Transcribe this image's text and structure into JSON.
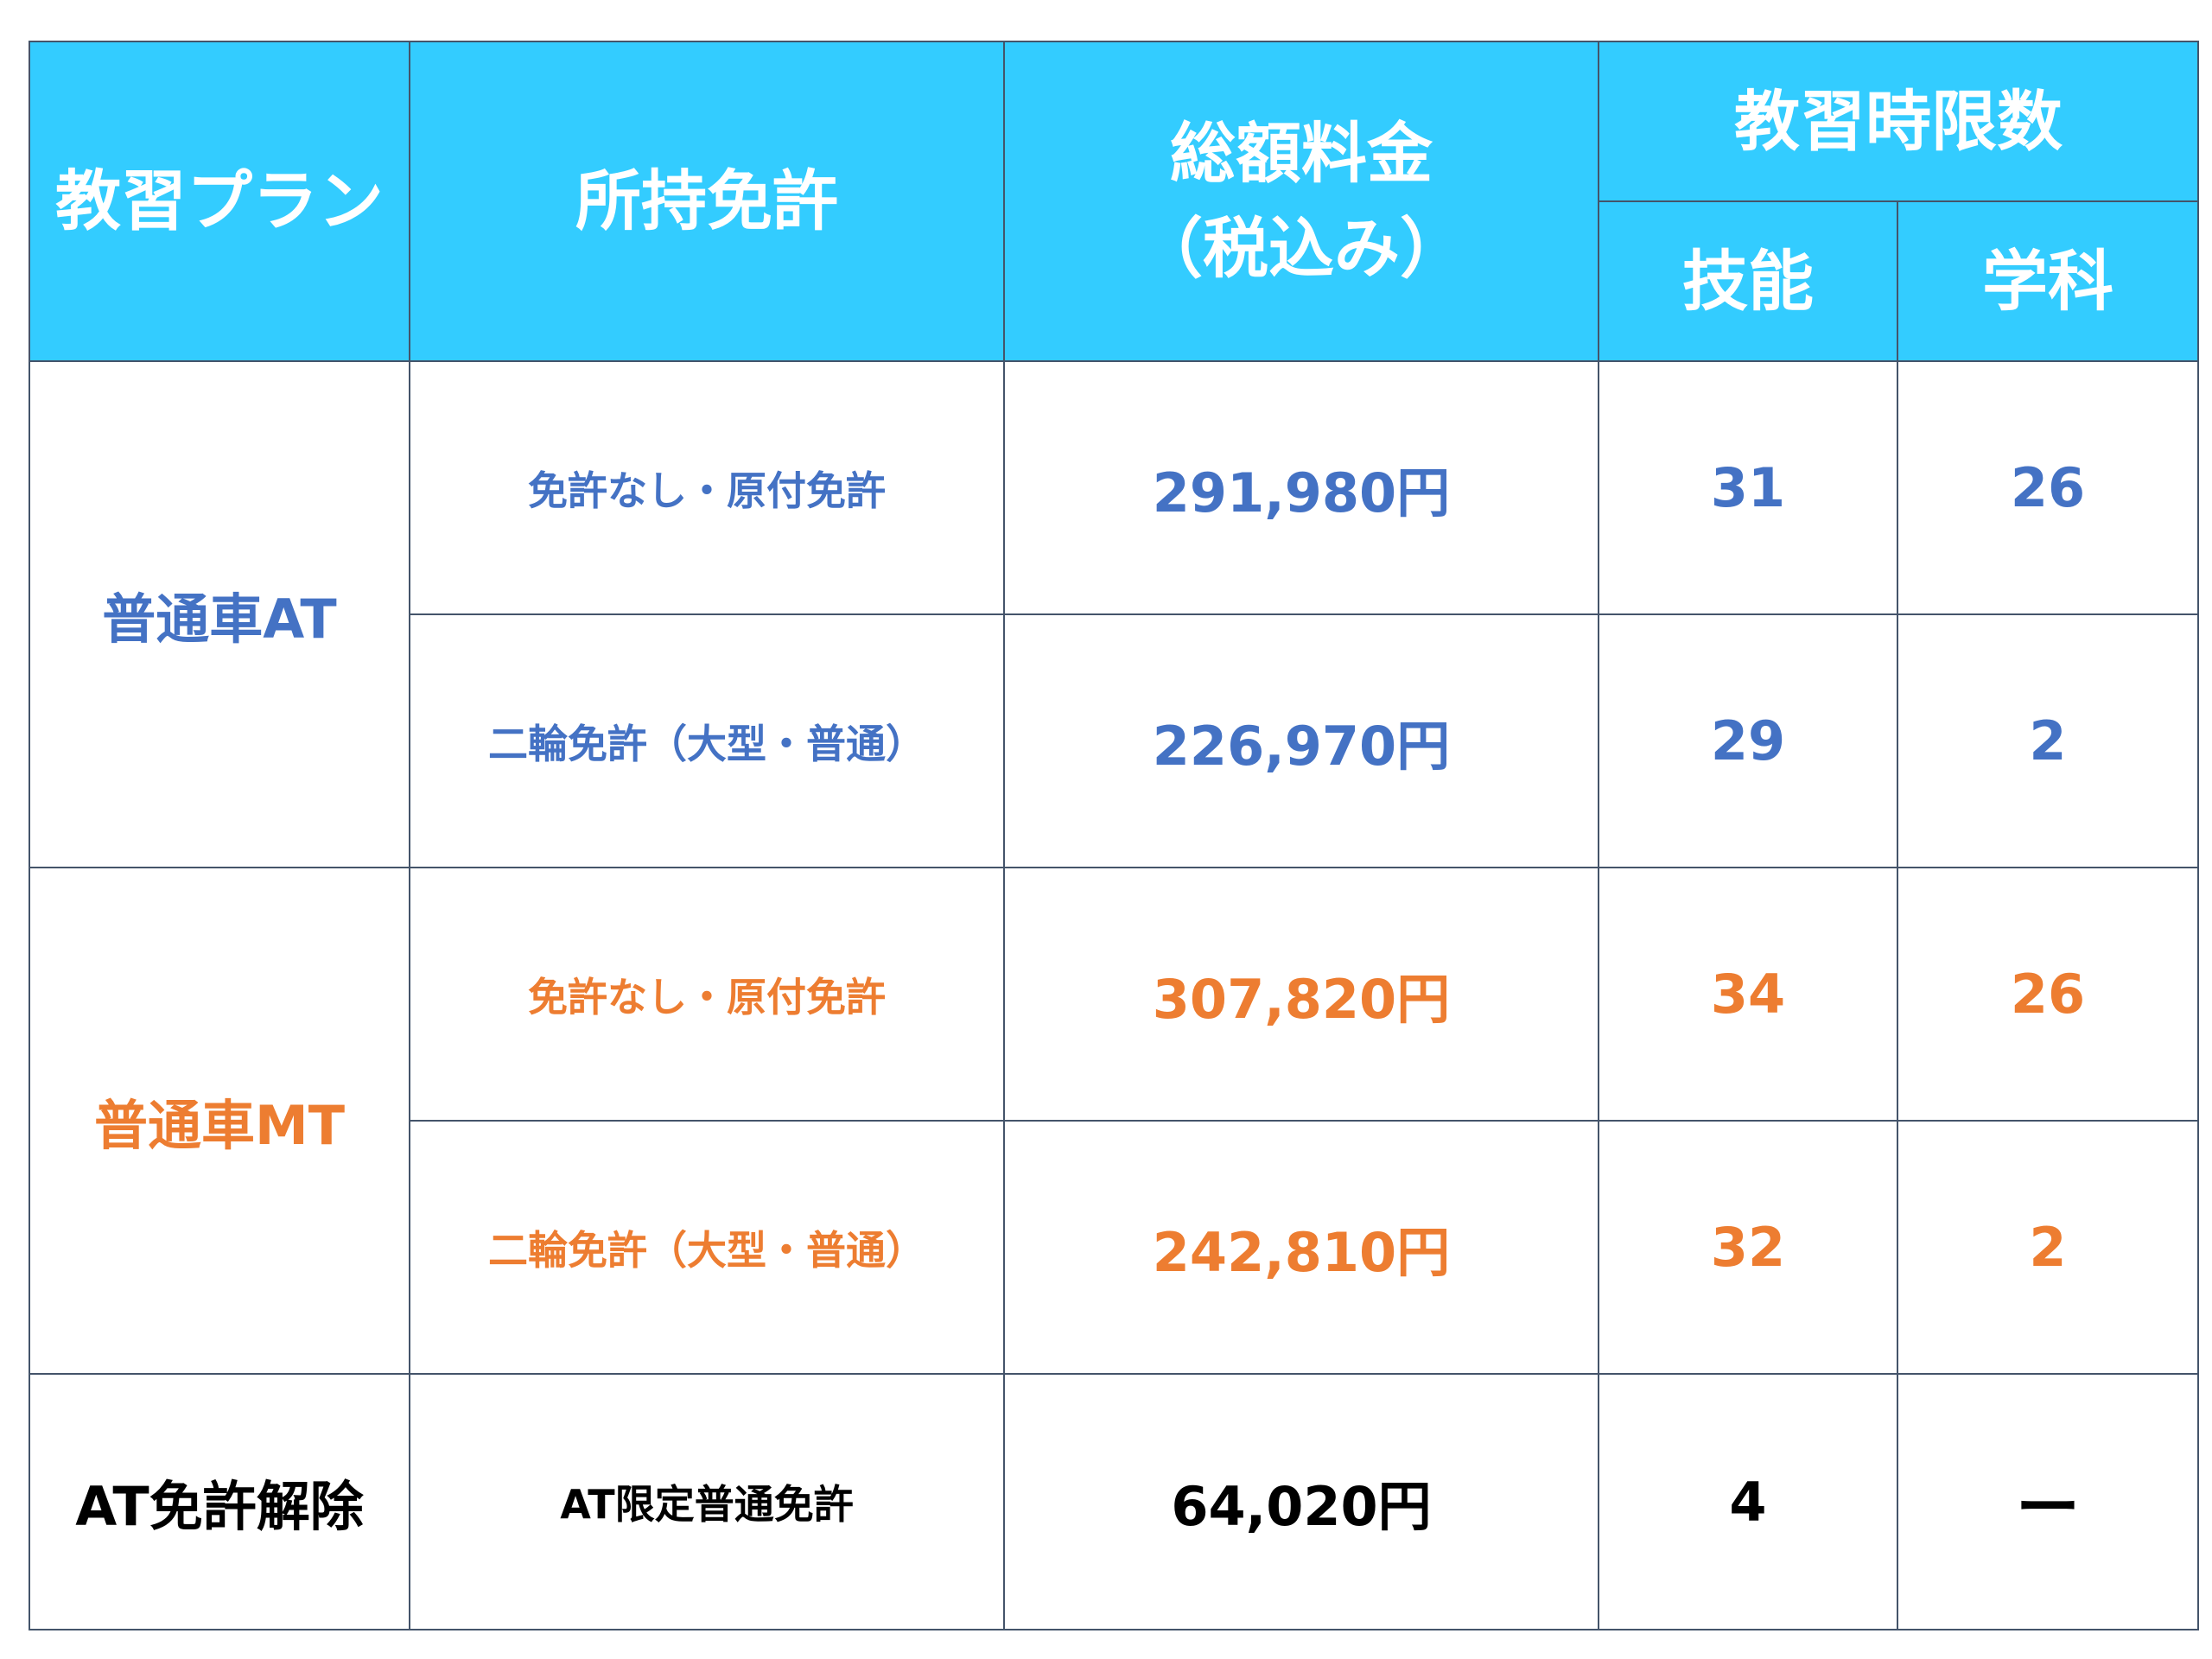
{
  "colors": {
    "header_bg": "#33ccff",
    "header_text": "#ffffff",
    "at_text": "#4472c4",
    "mt_text": "#ed7d31",
    "release_text": "#000000",
    "border": "#44546a"
  },
  "header": {
    "plan": "教習プラン",
    "license": "所持免許",
    "price_line1": "総額料金",
    "price_line2": "（税込み）",
    "hours": "教習時限数",
    "practical": "技能",
    "academic": "学科"
  },
  "groups": [
    {
      "plan": "普通車AT",
      "rows": [
        {
          "license": "免許なし・原付免許",
          "price": "291,980円",
          "practical": "31",
          "academic": "26"
        },
        {
          "license": "二輪免許（大型・普通）",
          "price": "226,970円",
          "practical": "29",
          "academic": "2"
        }
      ]
    },
    {
      "plan": "普通車MT",
      "rows": [
        {
          "license": "免許なし・原付免許",
          "price": "307,820円",
          "practical": "34",
          "academic": "26"
        },
        {
          "license": "二輪免許（大型・普通）",
          "price": "242,810円",
          "practical": "32",
          "academic": "2"
        }
      ]
    },
    {
      "plan": "AT免許解除",
      "rows": [
        {
          "license": "AT限定普通免許",
          "price": "64,020円",
          "practical": "4",
          "academic": "ー"
        }
      ]
    }
  ]
}
